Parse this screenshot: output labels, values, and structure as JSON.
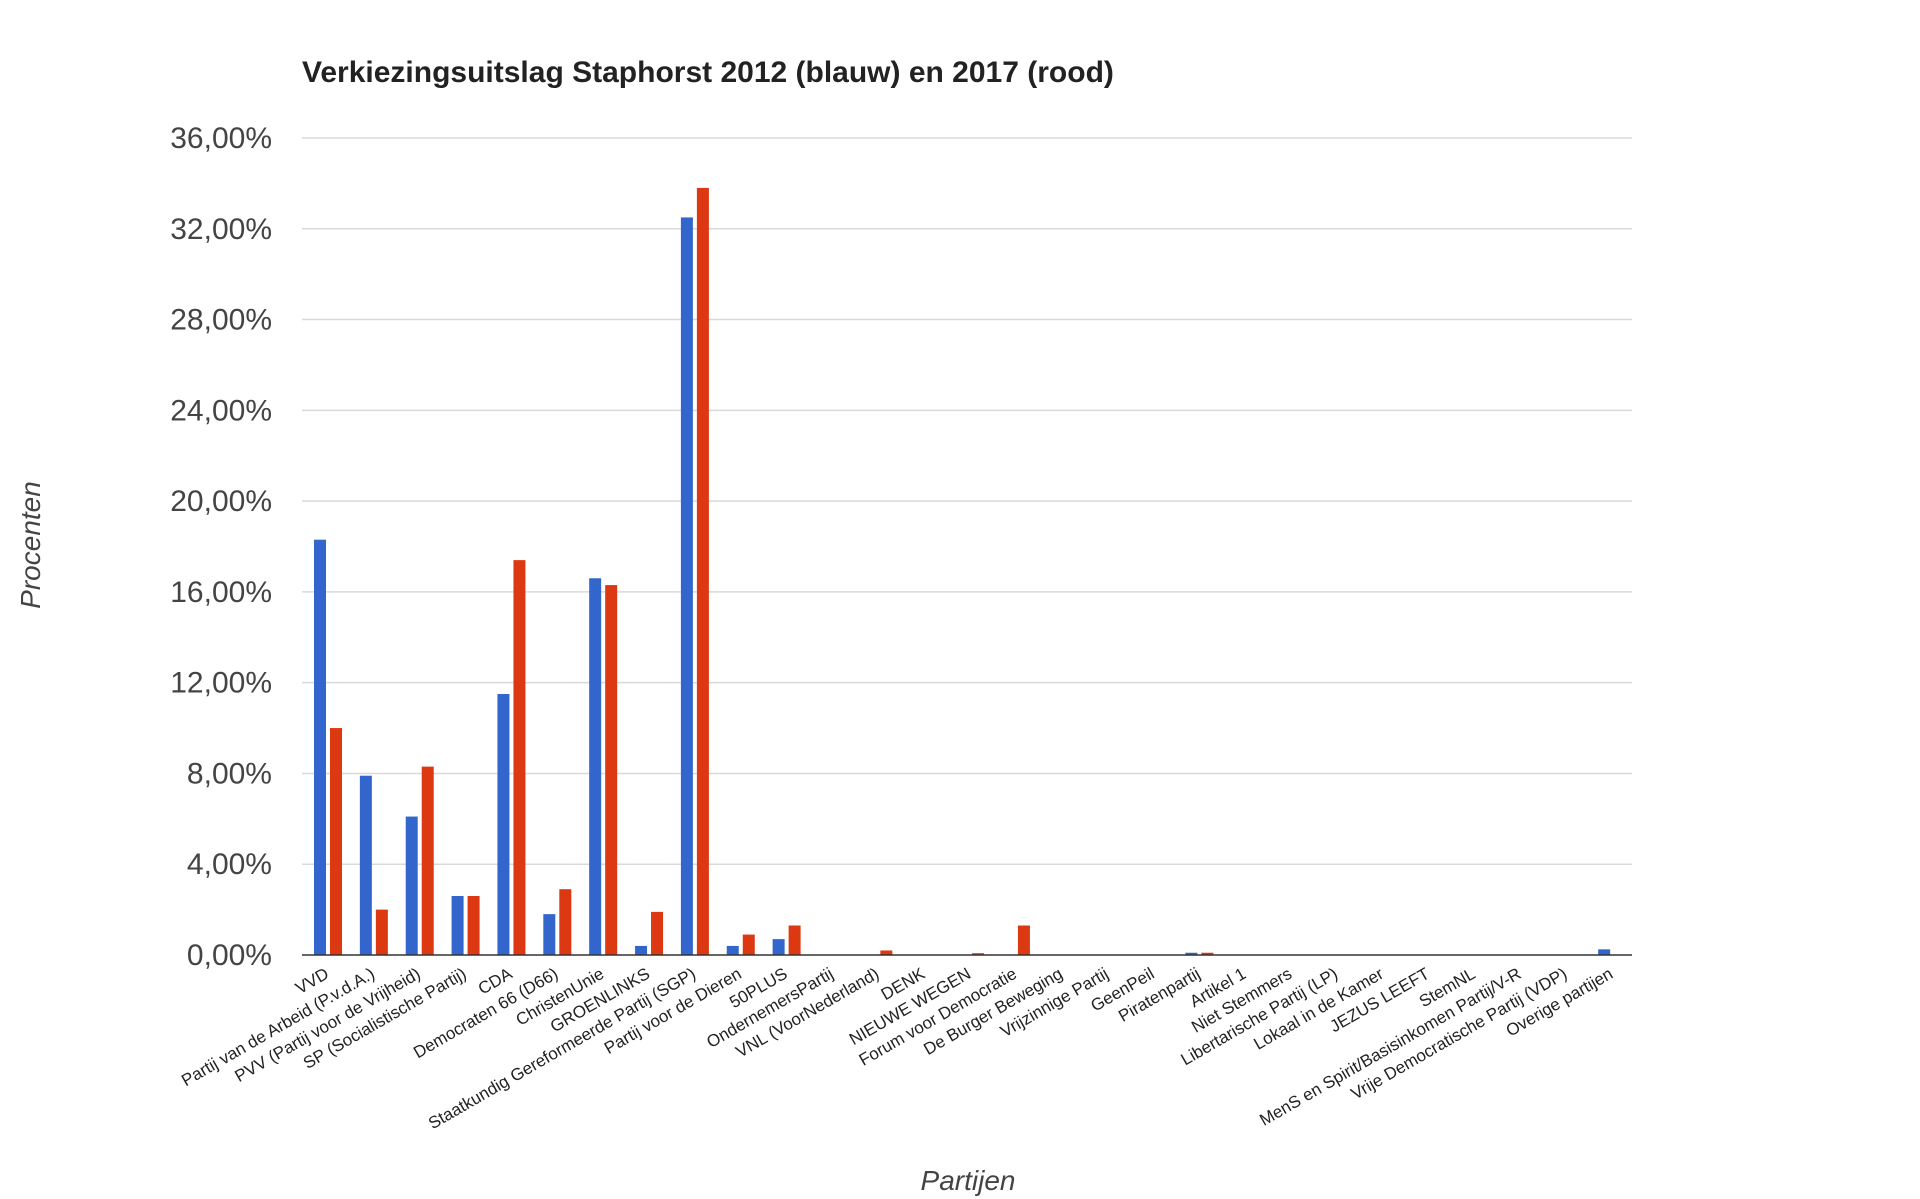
{
  "chart_data": {
    "type": "bar",
    "title": "Verkiezingsuitslag Staphorst 2012 (blauw) en 2017 (rood)",
    "xlabel": "Partijen",
    "ylabel": "Procenten",
    "ylim": [
      0,
      36
    ],
    "yticks": [
      "0,00%",
      "4,00%",
      "8,00%",
      "12,00%",
      "16,00%",
      "20,00%",
      "24,00%",
      "28,00%",
      "32,00%",
      "36,00%"
    ],
    "grid": true,
    "legend": "none",
    "categories": [
      "VVD",
      "Partij van de Arbeid (P.v.d.A.)",
      "PVV (Partij voor de Vrijheid)",
      "SP (Socialistische Partij)",
      "CDA",
      "Democraten 66 (D66)",
      "ChristenUnie",
      "GROENLINKS",
      "Staatkundig Gereformeerde Partij (SGP)",
      "Partij voor de Dieren",
      "50PLUS",
      "OndernemersPartij",
      "VNL (VoorNederland)",
      "DENK",
      "NIEUWE WEGEN",
      "Forum voor Democratie",
      "De Burger Beweging",
      "Vrijzinnige Partij",
      "GeenPeil",
      "Piratenpartij",
      "Artikel 1",
      "Niet Stemmers",
      "Libertarische Partij (LP)",
      "Lokaal in de Kamer",
      "JEZUS LEEFT",
      "StemNL",
      "MenS en Spirit/Basisinkomen Partij/V-R",
      "Vrije Democratische Partij (VDP)",
      "Overige partijen"
    ],
    "series": [
      {
        "color": "#3366cc",
        "values": [
          18.3,
          7.9,
          6.1,
          2.6,
          11.5,
          1.8,
          16.6,
          0.4,
          32.5,
          0.4,
          0.7,
          0,
          0,
          0,
          0,
          0,
          0,
          0,
          0,
          0.1,
          0,
          0,
          0,
          0,
          0,
          0,
          0,
          0,
          0.25
        ]
      },
      {
        "color": "#dc3912",
        "values": [
          10.0,
          2.0,
          8.3,
          2.6,
          17.4,
          2.9,
          16.3,
          1.9,
          33.8,
          0.9,
          1.3,
          0,
          0.2,
          0,
          0.08,
          1.3,
          0,
          0,
          0,
          0.1,
          0,
          0,
          0,
          0,
          0,
          0,
          0,
          0,
          0
        ]
      }
    ]
  }
}
